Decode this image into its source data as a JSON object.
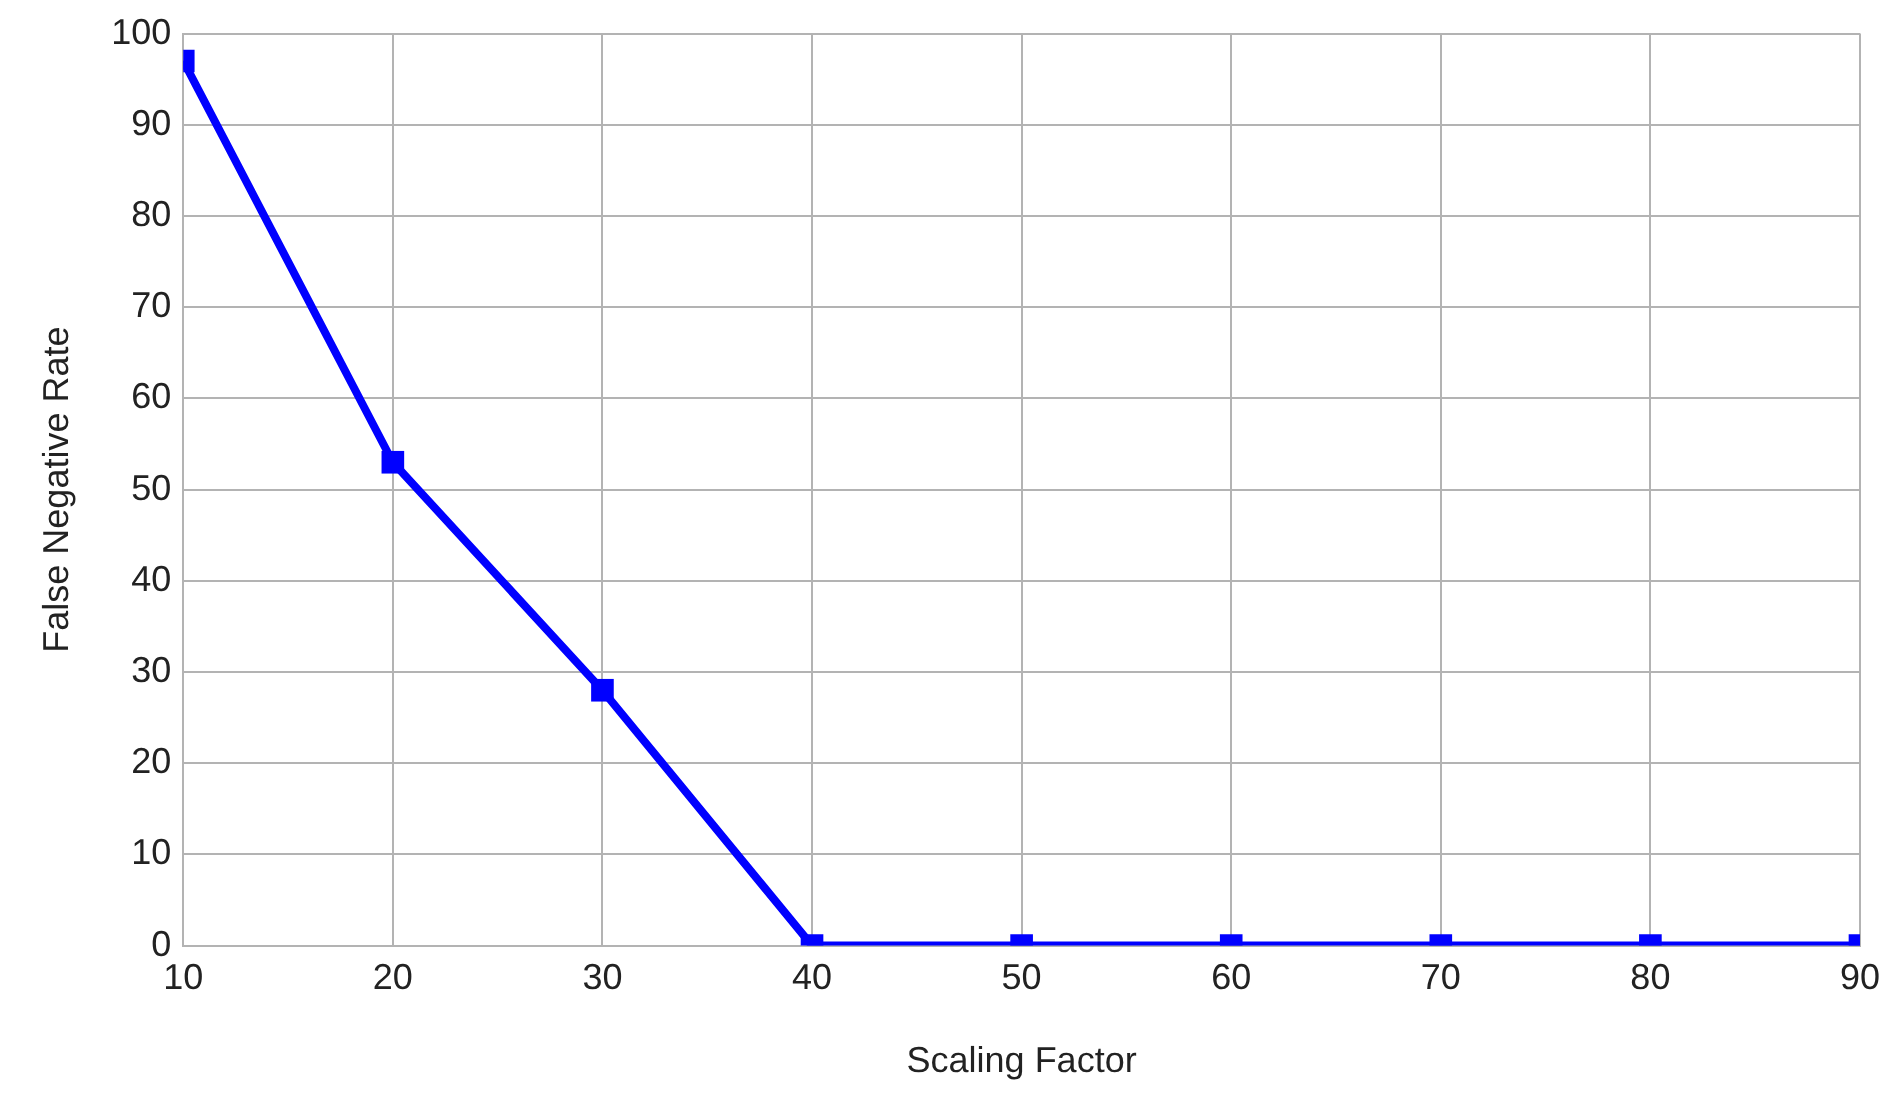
{
  "chart_data": {
    "type": "line",
    "xlabel": "Scaling Factor",
    "ylabel": "False Negative Rate",
    "x": [
      10,
      20,
      30,
      40,
      50,
      60,
      70,
      80,
      90
    ],
    "series": [
      {
        "color": "#0000ff",
        "values": [
          97,
          53,
          28,
          0,
          0,
          0,
          0,
          0,
          0
        ]
      }
    ],
    "xlim": [
      10,
      90
    ],
    "xticks": [
      10,
      20,
      30,
      40,
      50,
      60,
      70,
      80,
      90
    ],
    "ylim": [
      0,
      100
    ],
    "yticks": [
      0,
      10,
      20,
      30,
      40,
      50,
      60,
      70,
      80,
      90,
      100
    ],
    "grid": true,
    "marker": "square",
    "line_style": "solid",
    "legend": false
  }
}
